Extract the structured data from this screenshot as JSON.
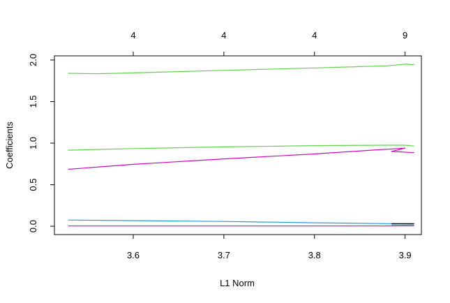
{
  "chart_data": {
    "type": "line",
    "title": "",
    "xlabel": "L1 Norm",
    "ylabel": "Coefficients",
    "xlim": [
      3.513,
      3.918
    ],
    "ylim": [
      -0.1,
      2.05
    ],
    "x_ticks": [
      "3.6",
      "3.7",
      "3.8",
      "3.9"
    ],
    "x_tick_values": [
      3.6,
      3.7,
      3.8,
      3.9
    ],
    "y_ticks": [
      "0.0",
      "0.5",
      "1.0",
      "1.5",
      "2.0"
    ],
    "y_tick_values": [
      0.0,
      0.5,
      1.0,
      1.5,
      2.0
    ],
    "top_ticks": [
      "4",
      "4",
      "4",
      "9"
    ],
    "top_tick_values": [
      3.6,
      3.7,
      3.8,
      3.9
    ],
    "grid": false,
    "series": [
      {
        "name": "coef-upper-green",
        "color": "#61D04F",
        "points": [
          [
            3.528,
            1.84
          ],
          [
            3.56,
            1.835
          ],
          [
            3.6,
            1.845
          ],
          [
            3.7,
            1.875
          ],
          [
            3.8,
            1.905
          ],
          [
            3.88,
            1.93
          ],
          [
            3.9,
            1.95
          ],
          [
            3.91,
            1.945
          ]
        ]
      },
      {
        "name": "coef-middle-green",
        "color": "#61D04F",
        "points": [
          [
            3.528,
            0.915
          ],
          [
            3.6,
            0.935
          ],
          [
            3.7,
            0.955
          ],
          [
            3.8,
            0.97
          ],
          [
            3.88,
            0.975
          ],
          [
            3.9,
            0.975
          ],
          [
            3.91,
            0.965
          ]
        ]
      },
      {
        "name": "coef-magenta-rising",
        "color": "#CD0BBC",
        "points": [
          [
            3.528,
            0.685
          ],
          [
            3.6,
            0.745
          ],
          [
            3.7,
            0.81
          ],
          [
            3.8,
            0.87
          ],
          [
            3.87,
            0.92
          ],
          [
            3.9,
            0.94
          ],
          [
            3.885,
            0.9
          ],
          [
            3.91,
            0.885
          ]
        ]
      },
      {
        "name": "coef-blue",
        "color": "#2297E6",
        "points": [
          [
            3.528,
            0.075
          ],
          [
            3.6,
            0.068
          ],
          [
            3.7,
            0.058
          ],
          [
            3.8,
            0.042
          ],
          [
            3.88,
            0.032
          ],
          [
            3.91,
            0.028
          ]
        ]
      },
      {
        "name": "coef-black",
        "color": "#000000",
        "points": [
          [
            3.885,
            0.032
          ],
          [
            3.91,
            0.032
          ]
        ]
      },
      {
        "name": "coef-cyan",
        "color": "#28E2E5",
        "points": [
          [
            3.885,
            0.018
          ],
          [
            3.91,
            0.016
          ]
        ]
      },
      {
        "name": "coef-magenta-flat",
        "color": "#CD0BBC",
        "points": [
          [
            3.528,
            0.003
          ],
          [
            3.7,
            0.003
          ],
          [
            3.88,
            0.003
          ],
          [
            3.91,
            0.005
          ]
        ]
      },
      {
        "name": "coef-red",
        "color": "#DF536B",
        "points": [
          [
            3.885,
            0.008
          ],
          [
            3.91,
            0.008
          ]
        ]
      }
    ]
  }
}
